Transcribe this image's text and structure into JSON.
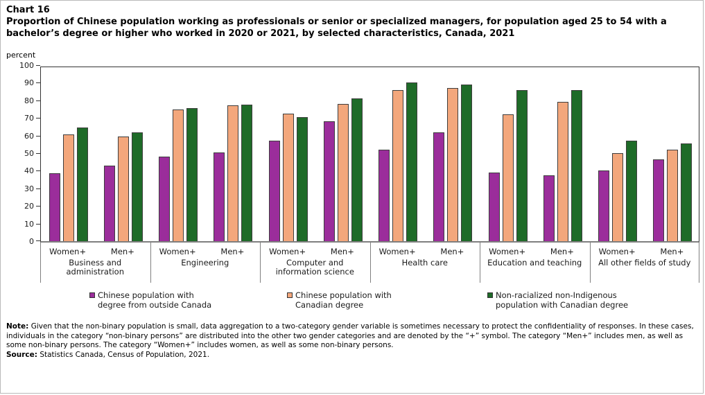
{
  "header": {
    "chart_label": "Chart 16",
    "title": "Proportion of Chinese population working as professionals or senior or specialized managers, for population aged 25 to 54 with a bachelor’s degree or higher who worked in 2020 or 2021, by selected characteristics, Canada, 2021",
    "unit_label": "percent"
  },
  "chart_data": {
    "type": "bar",
    "title": "Proportion of Chinese population working as professionals or senior or specialized managers, for population aged 25 to 54 with a bachelor’s degree or higher who worked in 2020 or 2021, by selected characteristics, Canada, 2021",
    "xlabel": "",
    "ylabel": "percent",
    "ylim": [
      0,
      100
    ],
    "ytick_step": 10,
    "grid": false,
    "legend_position": "bottom",
    "group_categories": [
      "Business and administration",
      "Engineering",
      "Computer and information science",
      "Health care",
      "Education and teaching",
      "All other fields of study"
    ],
    "subcategories": [
      "Women+",
      "Men+"
    ],
    "series": [
      {
        "name": "Chinese population with degree from outside Canada",
        "color": "#9B2D9B",
        "values": [
          [
            38.5,
            43
          ],
          [
            48,
            50.5
          ],
          [
            57,
            68
          ],
          [
            52,
            62
          ],
          [
            39,
            37.5
          ],
          [
            40,
            46.5
          ]
        ]
      },
      {
        "name": "Chinese population with Canadian degree",
        "color": "#F3A77C",
        "values": [
          [
            60.5,
            59.5
          ],
          [
            75,
            77
          ],
          [
            72.5,
            78
          ],
          [
            86,
            87
          ],
          [
            72,
            79
          ],
          [
            50,
            52
          ]
        ]
      },
      {
        "name": "Non-racialized non-Indigenous population with Canadian degree",
        "color": "#1E6B28",
        "values": [
          [
            64.5,
            62
          ],
          [
            75.5,
            77.5
          ],
          [
            70.5,
            81
          ],
          [
            90,
            89
          ],
          [
            86,
            86
          ],
          [
            57,
            55.5
          ]
        ]
      }
    ]
  },
  "legend": {
    "items": [
      {
        "line1": "Chinese population with",
        "line2": "degree from outside Canada",
        "color": "#9B2D9B"
      },
      {
        "line1": "Chinese population with",
        "line2": "Canadian degree",
        "color": "#F3A77C"
      },
      {
        "line1": "Non-racialized non-Indigenous",
        "line2": "population with Canadian degree",
        "color": "#1E6B28"
      }
    ]
  },
  "footer": {
    "note_label": "Note:",
    "note_text": "Given that the non-binary population is small, data aggregation to a two-category gender variable is sometimes necessary to protect the confidentiality of responses. In these cases, individuals in the category “non-binary persons” are distributed into the other two gender categories and are denoted by the “+” symbol. The category “Men+” includes men, as well as some non-binary persons. The category “Women+” includes women, as well as some non-binary persons.",
    "source_label": "Source:",
    "source_text": "Statistics Canada, Census of Population, 2021."
  }
}
